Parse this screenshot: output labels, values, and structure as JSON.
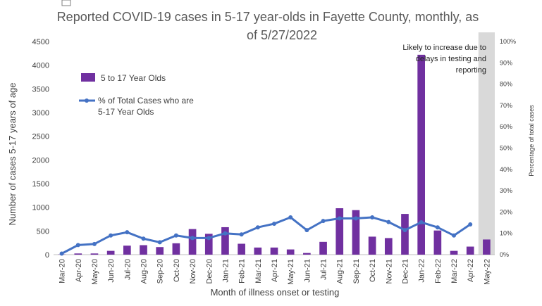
{
  "chart_data": {
    "type": "bar",
    "title": "Reported COVID-19 cases in 5-17 year-olds in Fayette County, monthly, as of 5/27/2022",
    "xlabel": "Month of illness onset or testing",
    "ylabel": "Number of cases 5-17 years of age",
    "y2label": "Percentage of total cases",
    "ylim": [
      0,
      4500
    ],
    "y2lim": [
      0,
      100
    ],
    "yticks": [
      "0",
      "500",
      "1000",
      "1500",
      "2000",
      "2500",
      "3000",
      "3500",
      "4000",
      "4500"
    ],
    "y2ticks": [
      "0%",
      "10%",
      "20%",
      "30%",
      "40%",
      "50%",
      "60%",
      "70%",
      "80%",
      "90%",
      "100%"
    ],
    "categories": [
      "Mar-20",
      "Apr-20",
      "May-20",
      "Jun-20",
      "Jul-20",
      "Aug-20",
      "Sep-20",
      "Oct-20",
      "Nov-20",
      "Dec-20",
      "Jan-21",
      "Feb-21",
      "Mar-21",
      "Apr-21",
      "May-21",
      "Jun-21",
      "Jul-21",
      "Aug-21",
      "Sep-21",
      "Oct-21",
      "Nov-21",
      "Dec-21",
      "Jan-22",
      "Feb-22",
      "Mar-22",
      "Apr-22",
      "May-22"
    ],
    "series": [
      {
        "name": "5 to 17 Year Olds",
        "kind": "bar",
        "axis": "left",
        "color": "#7030A0",
        "values": [
          5,
          25,
          25,
          80,
          190,
          200,
          160,
          240,
          540,
          440,
          580,
          230,
          150,
          150,
          110,
          35,
          270,
          980,
          940,
          380,
          350,
          860,
          4220,
          510,
          80,
          170,
          320
        ]
      },
      {
        "name": "% of Total Cases who are 5-17 Year Olds",
        "kind": "line",
        "axis": "right",
        "color": "#4472C4",
        "values": [
          0.5,
          4.5,
          5,
          9,
          10.5,
          7.5,
          5.8,
          9,
          7.8,
          7.8,
          10,
          9.5,
          12.8,
          14.5,
          17.5,
          11.5,
          15.8,
          17,
          17,
          17.5,
          15.3,
          11.5,
          15.2,
          12.8,
          9,
          14.2,
          null
        ]
      }
    ],
    "shaded_region": {
      "category": "May-22",
      "color": "#D9D9D9"
    },
    "annotation": [
      "Likely to increase due to",
      "delays in testing and",
      "reporting"
    ],
    "legend_position": "upper-left",
    "grid": false
  }
}
